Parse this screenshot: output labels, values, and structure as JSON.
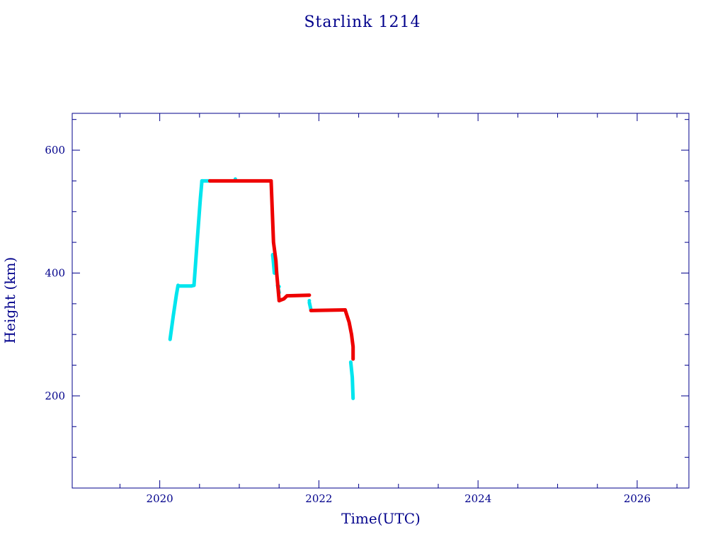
{
  "chart_data": {
    "type": "scatter",
    "title": "Starlink 1214",
    "xlabel": "Time(UTC)",
    "ylabel": "Height (km)",
    "xlim": [
      2018.9,
      2026.65
    ],
    "ylim": [
      50,
      660
    ],
    "x_major_ticks": [
      2020,
      2022,
      2024,
      2026
    ],
    "x_tick_labels": [
      "2020",
      "2022",
      "2024",
      "2026"
    ],
    "x_minor_ticks": [
      2019.5,
      2020.5,
      2021,
      2021.5,
      2022.5,
      2023,
      2023.5,
      2024.5,
      2025,
      2025.5,
      2026.5
    ],
    "y_major_ticks": [
      200,
      400,
      600
    ],
    "y_tick_labels": [
      "200",
      "400",
      "600"
    ],
    "y_minor_ticks": [
      100,
      150,
      250,
      300,
      350,
      450,
      500,
      550,
      650
    ],
    "grid": false,
    "legend": "none",
    "series": [
      {
        "color": "#00e5ee",
        "segments": [
          [
            [
              2020.13,
              292
            ],
            [
              2020.17,
              330
            ],
            [
              2020.21,
              365
            ],
            [
              2020.23,
              380
            ]
          ],
          [
            [
              2020.23,
              379
            ],
            [
              2020.4,
              379
            ],
            [
              2020.43,
              380
            ]
          ],
          [
            [
              2020.43,
              380
            ],
            [
              2020.47,
              450
            ],
            [
              2020.51,
              520
            ],
            [
              2020.53,
              550
            ]
          ],
          [
            [
              2020.53,
              550
            ],
            [
              2020.63,
              550
            ]
          ],
          [
            [
              2021.42,
              430
            ],
            [
              2021.44,
              400
            ]
          ],
          [
            [
              2021.48,
              380
            ],
            [
              2021.5,
              368
            ]
          ],
          [
            [
              2021.88,
              352
            ],
            [
              2021.9,
              340
            ]
          ],
          [
            [
              2022.4,
              255
            ],
            [
              2022.42,
              230
            ],
            [
              2022.43,
              196
            ]
          ]
        ],
        "points": [
          [
            2020.95,
            553
          ],
          [
            2021.42,
            428
          ],
          [
            2021.5,
            378
          ],
          [
            2021.88,
            355
          ]
        ]
      },
      {
        "color": "#ee0000",
        "segments": [
          [
            [
              2020.63,
              550
            ],
            [
              2021.4,
              550
            ]
          ],
          [
            [
              2021.4,
              548
            ],
            [
              2021.43,
              450
            ],
            [
              2021.46,
              420
            ],
            [
              2021.47,
              400
            ],
            [
              2021.5,
              356
            ]
          ],
          [
            [
              2021.5,
              355
            ],
            [
              2021.56,
              358
            ],
            [
              2021.6,
              363
            ],
            [
              2021.88,
              364
            ]
          ],
          [
            [
              2021.9,
              339
            ],
            [
              2022.33,
              340
            ]
          ],
          [
            [
              2022.33,
              340
            ],
            [
              2022.38,
              320
            ],
            [
              2022.41,
              300
            ],
            [
              2022.43,
              280
            ],
            [
              2022.43,
              260
            ]
          ]
        ],
        "points": []
      }
    ]
  }
}
